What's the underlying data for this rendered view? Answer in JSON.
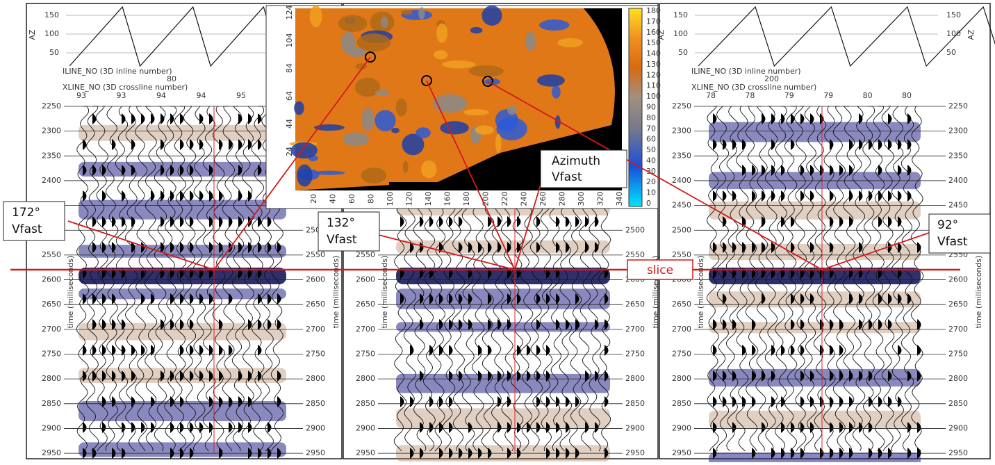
{
  "panels": [
    {
      "az_label": "AZ",
      "az_ticks": [
        "50",
        "100",
        "150"
      ],
      "iline_label": "ILINE_NO (3D inline number)",
      "iline_value": "80",
      "xline_label": "XLINE_NO (3D crossline number)",
      "xline_ticks": [
        "93",
        "93",
        "94",
        "94",
        "95"
      ],
      "time_label": "time (milliseconds)",
      "time_ticks": [
        "2250",
        "2300",
        "2350",
        "2400",
        "2450",
        "2500",
        "2550",
        "2600",
        "2650",
        "2700",
        "2750",
        "2800",
        "2850",
        "2900",
        "2950"
      ]
    },
    {
      "time_label": "time (milliseconds)",
      "time_ticks": [
        "2500",
        "2550",
        "2600",
        "2650",
        "2700",
        "2750",
        "2800",
        "2850",
        "2900",
        "2950"
      ]
    },
    {
      "az_label": "AZ",
      "az_ticks": [
        "50",
        "100",
        "150"
      ],
      "iline_label": "ILINE_NO (3D inline number)",
      "iline_value": "200",
      "xline_label": "XLINE_NO (3D crossline number)",
      "xline_ticks": [
        "78",
        "78",
        "79",
        "79",
        "80",
        "80"
      ],
      "time_label": "time (milliseconds)",
      "time_ticks": [
        "2250",
        "2300",
        "2350",
        "2400",
        "2450",
        "2500",
        "2550",
        "2600",
        "2650",
        "2700",
        "2750",
        "2800",
        "2850",
        "2900",
        "2950"
      ]
    }
  ],
  "map": {
    "y_ticks": [
      "124",
      "104",
      "84",
      "64",
      "44",
      "24"
    ],
    "x_ticks": [
      "20",
      "40",
      "60",
      "80",
      "100",
      "120",
      "140",
      "160",
      "180",
      "200",
      "220",
      "240",
      "260",
      "280",
      "300",
      "320",
      "340"
    ],
    "colorbar_ticks": [
      "180",
      "170",
      "160",
      "150",
      "140",
      "130",
      "120",
      "110",
      "100",
      "90",
      "80",
      "70",
      "60",
      "50",
      "40",
      "30",
      "20",
      "10",
      "0"
    ]
  },
  "callouts": [
    {
      "angle": "172°",
      "label": "Vfast"
    },
    {
      "angle": "132°",
      "label": "Vfast"
    },
    {
      "angle": "92°",
      "label": "Vfast"
    }
  ],
  "azimuth_label": [
    "Azimuth",
    "Vfast"
  ],
  "slice_label": "slice"
}
